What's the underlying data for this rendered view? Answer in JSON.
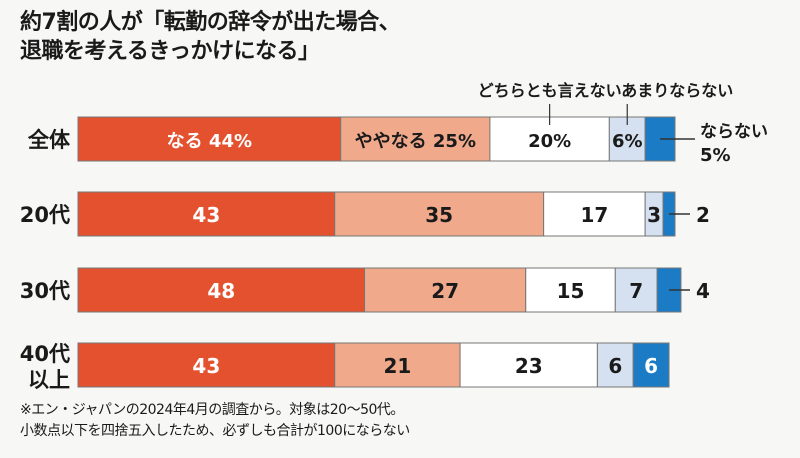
{
  "title": [
    "約7割の人が「転勤の辞令が出た場合、",
    "退職を考えるきっかけになる」"
  ],
  "footnote": [
    "※エン・ジャパンの2024年4月の調査から。対象は20～50代。",
    "小数点以下を四捨五入したため、必ずしも合計が100にならない"
  ],
  "chart_data": {
    "type": "bar",
    "orientation": "horizontal",
    "stacked": true,
    "unit": "%",
    "categories": [
      "全体",
      "20代",
      "30代",
      "40代以上"
    ],
    "category_labels": [
      [
        "全体"
      ],
      [
        "20代"
      ],
      [
        "30代"
      ],
      [
        "40代",
        "以上"
      ]
    ],
    "series": [
      {
        "name": "なる",
        "values": [
          44,
          43,
          48,
          43
        ],
        "color": "#e4512f"
      },
      {
        "name": "ややなる",
        "values": [
          25,
          35,
          27,
          21
        ],
        "color": "#f0a98b"
      },
      {
        "name": "どちらとも言えない",
        "values": [
          20,
          17,
          15,
          23
        ],
        "color": "#ffffff"
      },
      {
        "name": "あまりならない",
        "values": [
          6,
          3,
          7,
          6
        ],
        "color": "#d5e0f1"
      },
      {
        "name": "ならない",
        "values": [
          5,
          2,
          4,
          6
        ],
        "color": "#1b7bc4"
      }
    ],
    "first_row_labels": [
      "なる 44%",
      "ややなる 25%",
      "20%",
      "6%",
      "5%"
    ],
    "legend": {
      "above": [
        "どちらとも言えない",
        "あまりならない"
      ],
      "right": "ならない"
    },
    "grid": false
  }
}
